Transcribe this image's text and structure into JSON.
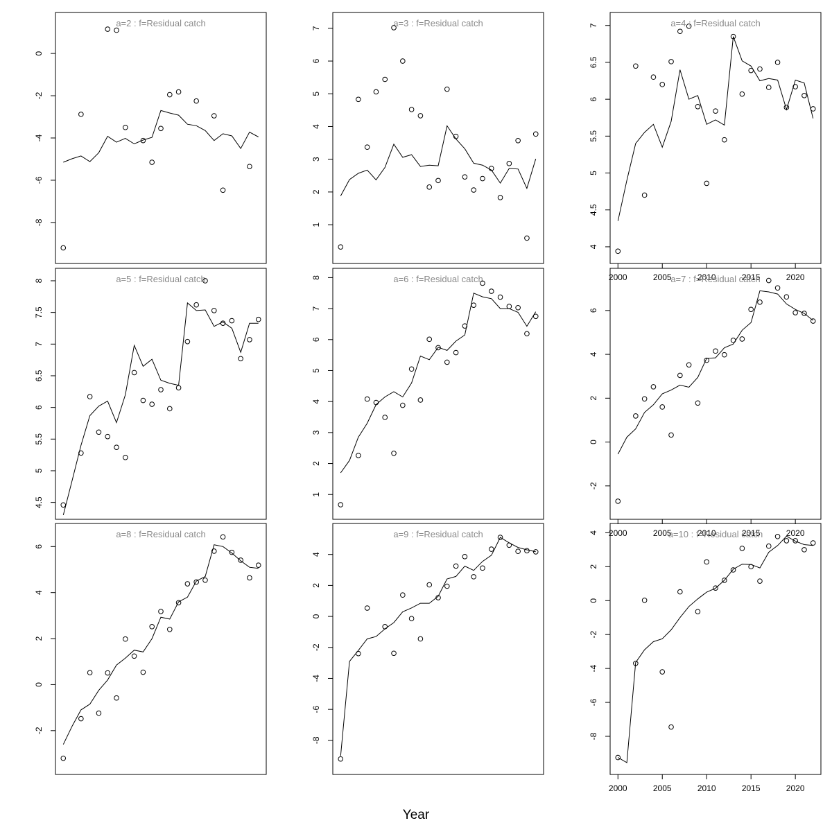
{
  "xlabel": "Year",
  "chart_data": [
    {
      "type": "line",
      "title": "a=2  :  f=Residual catch",
      "xlim": [
        2000,
        2022
      ],
      "ylim": [
        -9.5,
        1.5
      ],
      "yticks": [
        -8,
        -6,
        -4,
        -2,
        0
      ],
      "xticks": [],
      "line": {
        "x": [
          2000,
          2001,
          2002,
          2003,
          2004,
          2005,
          2006,
          2007,
          2008,
          2009,
          2010,
          2011,
          2012,
          2013,
          2014,
          2015,
          2016,
          2017,
          2018,
          2019,
          2020,
          2021,
          2022
        ],
        "y": [
          -5.15,
          -4.98,
          -4.85,
          -5.12,
          -4.7,
          -3.92,
          -4.2,
          -4.02,
          -4.28,
          -4.1,
          -3.97,
          -2.7,
          -2.82,
          -2.92,
          -3.35,
          -3.42,
          -3.65,
          -4.12,
          -3.8,
          -3.9,
          -4.5,
          -3.72,
          -3.95
        ]
      },
      "points": {
        "x": [
          2000,
          2002,
          2005,
          2006,
          2007,
          2009,
          2010,
          2011,
          2012,
          2013,
          2015,
          2017,
          2018,
          2021
        ],
        "y": [
          -9.2,
          -2.88,
          1.15,
          1.1,
          -3.5,
          -4.12,
          -5.15,
          -3.55,
          -1.95,
          -1.82,
          -2.25,
          -2.95,
          -6.47,
          -5.35
        ]
      }
    },
    {
      "type": "line",
      "title": "a=3  :  f=Residual catch",
      "xlim": [
        2000,
        2022
      ],
      "ylim": [
        0.1,
        7.2
      ],
      "yticks": [
        1,
        2,
        3,
        4,
        5,
        6,
        7
      ],
      "xticks": [],
      "line": {
        "x": [
          2000,
          2001,
          2002,
          2003,
          2004,
          2005,
          2006,
          2007,
          2008,
          2009,
          2010,
          2011,
          2012,
          2013,
          2014,
          2015,
          2016,
          2017,
          2018,
          2019,
          2020,
          2021,
          2022
        ],
        "y": [
          1.88,
          2.38,
          2.57,
          2.67,
          2.37,
          2.75,
          3.46,
          3.06,
          3.14,
          2.78,
          2.82,
          2.8,
          4.02,
          3.62,
          3.32,
          2.88,
          2.82,
          2.67,
          2.27,
          2.72,
          2.7,
          2.11,
          3.01
        ]
      },
      "points": {
        "x": [
          2000,
          2002,
          2003,
          2004,
          2005,
          2006,
          2007,
          2008,
          2009,
          2010,
          2011,
          2012,
          2013,
          2014,
          2015,
          2016,
          2017,
          2018,
          2019,
          2020,
          2021,
          2022
        ],
        "y": [
          0.32,
          4.83,
          3.37,
          5.06,
          5.44,
          7.02,
          6.0,
          4.52,
          4.33,
          2.15,
          2.35,
          5.14,
          3.7,
          2.46,
          2.06,
          2.41,
          2.72,
          1.83,
          2.87,
          3.57,
          0.59,
          3.77
        ]
      }
    },
    {
      "type": "line",
      "title": "a=4  :  f=Residual catch",
      "xlim": [
        2000,
        2022
      ],
      "ylim": [
        3.9,
        7.05
      ],
      "yticks": [
        4.0,
        4.5,
        5.0,
        5.5,
        6.0,
        6.5,
        7.0
      ],
      "xticks": [
        2000,
        2005,
        2010,
        2015,
        2020
      ],
      "line": {
        "x": [
          2000,
          2001,
          2002,
          2003,
          2004,
          2005,
          2006,
          2007,
          2008,
          2009,
          2010,
          2011,
          2012,
          2013,
          2014,
          2015,
          2016,
          2017,
          2018,
          2019,
          2020,
          2021,
          2022
        ],
        "y": [
          4.35,
          4.9,
          5.4,
          5.55,
          5.66,
          5.35,
          5.7,
          6.4,
          6.0,
          6.05,
          5.66,
          5.72,
          5.65,
          6.85,
          6.52,
          6.45,
          6.25,
          6.28,
          6.26,
          5.86,
          6.26,
          6.22,
          5.74
        ]
      },
      "points": {
        "x": [
          2000,
          2002,
          2003,
          2004,
          2005,
          2006,
          2007,
          2008,
          2009,
          2010,
          2011,
          2012,
          2013,
          2014,
          2015,
          2016,
          2017,
          2018,
          2019,
          2020,
          2021,
          2022
        ],
        "y": [
          3.94,
          6.45,
          4.7,
          6.3,
          6.2,
          6.51,
          6.92,
          6.99,
          5.9,
          4.86,
          5.84,
          5.45,
          6.85,
          6.07,
          6.39,
          6.41,
          6.16,
          6.5,
          5.89,
          6.17,
          6.05,
          5.87
        ]
      }
    },
    {
      "type": "line",
      "title": "a=5  :  f=Residual catch",
      "xlim": [
        2000,
        2022
      ],
      "ylim": [
        4.38,
        8.05
      ],
      "yticks": [
        4.5,
        5.0,
        5.5,
        6.0,
        6.5,
        7.0,
        7.5,
        8.0
      ],
      "xticks": [],
      "line": {
        "x": [
          2000,
          2001,
          2002,
          2003,
          2004,
          2005,
          2006,
          2007,
          2008,
          2009,
          2010,
          2011,
          2012,
          2013,
          2014,
          2015,
          2016,
          2017,
          2018,
          2019,
          2020,
          2021,
          2022
        ],
        "y": [
          4.3,
          4.85,
          5.4,
          5.87,
          6.02,
          6.1,
          5.76,
          6.2,
          6.98,
          6.65,
          6.76,
          6.43,
          6.38,
          6.35,
          7.65,
          7.53,
          7.54,
          7.28,
          7.35,
          7.25,
          6.87,
          7.33,
          7.33
        ]
      },
      "points": {
        "x": [
          2000,
          2002,
          2003,
          2004,
          2005,
          2006,
          2007,
          2008,
          2009,
          2010,
          2011,
          2012,
          2013,
          2014,
          2015,
          2016,
          2017,
          2018,
          2019,
          2020,
          2021,
          2022
        ],
        "y": [
          4.46,
          5.28,
          6.17,
          5.61,
          5.54,
          5.37,
          5.21,
          6.55,
          6.11,
          6.05,
          6.28,
          5.98,
          6.31,
          7.04,
          7.62,
          8.0,
          7.53,
          7.33,
          7.37,
          6.77,
          7.07,
          7.39
        ]
      }
    },
    {
      "type": "line",
      "title": "a=6  :  f=Residual catch",
      "xlim": [
        2000,
        2022
      ],
      "ylim": [
        0.5,
        8.0
      ],
      "yticks": [
        1,
        2,
        3,
        4,
        5,
        6,
        7,
        8
      ],
      "xticks": [],
      "line": {
        "x": [
          2000,
          2001,
          2002,
          2003,
          2004,
          2005,
          2006,
          2007,
          2008,
          2009,
          2010,
          2011,
          2012,
          2013,
          2014,
          2015,
          2016,
          2017,
          2018,
          2019,
          2020,
          2021,
          2022
        ],
        "y": [
          1.7,
          2.1,
          2.85,
          3.3,
          3.9,
          4.15,
          4.32,
          4.15,
          4.6,
          5.47,
          5.35,
          5.75,
          5.65,
          5.95,
          6.15,
          7.5,
          7.38,
          7.32,
          7.0,
          7.0,
          6.88,
          6.43,
          6.9
        ]
      },
      "points": {
        "x": [
          2000,
          2002,
          2003,
          2004,
          2005,
          2006,
          2007,
          2008,
          2009,
          2010,
          2011,
          2012,
          2013,
          2014,
          2015,
          2016,
          2017,
          2018,
          2019,
          2020,
          2021,
          2022
        ],
        "y": [
          0.67,
          2.26,
          4.08,
          3.97,
          3.49,
          2.33,
          3.88,
          5.05,
          4.05,
          6.01,
          5.74,
          5.27,
          5.58,
          6.44,
          7.11,
          7.82,
          7.56,
          7.37,
          7.07,
          7.03,
          6.19,
          6.75
        ]
      }
    },
    {
      "type": "line",
      "title": "a=7  :  f=Residual catch",
      "xlim": [
        2000,
        2022
      ],
      "ylim": [
        -3.1,
        7.5
      ],
      "yticks": [
        -2,
        0,
        2,
        4,
        6
      ],
      "xticks": [
        2000,
        2005,
        2010,
        2015,
        2020
      ],
      "line": {
        "x": [
          2000,
          2001,
          2002,
          2003,
          2004,
          2005,
          2006,
          2007,
          2008,
          2009,
          2010,
          2011,
          2012,
          2013,
          2014,
          2015,
          2016,
          2017,
          2018,
          2019,
          2020,
          2021,
          2022
        ],
        "y": [
          -0.55,
          0.22,
          0.6,
          1.35,
          1.7,
          2.2,
          2.37,
          2.6,
          2.5,
          2.95,
          3.82,
          3.84,
          4.3,
          4.47,
          5.1,
          5.45,
          6.9,
          6.85,
          6.75,
          6.3,
          6.05,
          5.87,
          5.55
        ]
      },
      "points": {
        "x": [
          2000,
          2002,
          2003,
          2004,
          2005,
          2006,
          2007,
          2008,
          2009,
          2010,
          2011,
          2012,
          2013,
          2014,
          2015,
          2016,
          2017,
          2018,
          2019,
          2020,
          2021,
          2022
        ],
        "y": [
          -2.7,
          1.19,
          1.97,
          2.52,
          1.6,
          0.32,
          3.04,
          3.52,
          1.78,
          3.73,
          4.15,
          3.98,
          4.64,
          4.7,
          6.05,
          6.38,
          7.37,
          7.03,
          6.62,
          5.9,
          5.87,
          5.52
        ]
      }
    },
    {
      "type": "line",
      "title": "a=8  :  f=Residual catch",
      "xlim": [
        2000,
        2022
      ],
      "ylim": [
        -3.5,
        6.6
      ],
      "yticks": [
        -2,
        0,
        2,
        4,
        6
      ],
      "xticks": [],
      "line": {
        "x": [
          2000,
          2001,
          2002,
          2003,
          2004,
          2005,
          2006,
          2007,
          2008,
          2009,
          2010,
          2011,
          2012,
          2013,
          2014,
          2015,
          2016,
          2017,
          2018,
          2019,
          2020,
          2021,
          2022
        ],
        "y": [
          -2.6,
          -1.8,
          -1.1,
          -0.85,
          -0.25,
          0.2,
          0.85,
          1.15,
          1.5,
          1.42,
          2.0,
          2.93,
          2.85,
          3.6,
          3.8,
          4.5,
          4.7,
          6.08,
          6.0,
          5.72,
          5.38,
          5.1,
          5.05
        ]
      },
      "points": {
        "x": [
          2000,
          2002,
          2003,
          2004,
          2005,
          2006,
          2007,
          2008,
          2009,
          2010,
          2011,
          2012,
          2013,
          2014,
          2015,
          2016,
          2017,
          2018,
          2019,
          2020,
          2021,
          2022
        ],
        "y": [
          -3.2,
          -1.48,
          0.52,
          -1.24,
          0.51,
          -0.58,
          1.98,
          1.24,
          0.54,
          2.52,
          3.18,
          2.4,
          3.56,
          4.38,
          4.46,
          4.54,
          5.8,
          6.42,
          5.75,
          5.41,
          4.64,
          5.19
        ]
      }
    },
    {
      "type": "line",
      "title": "a=9  :  f=Residual catch",
      "xlim": [
        2000,
        2022
      ],
      "ylim": [
        -9.6,
        5.4
      ],
      "yticks": [
        -8,
        -6,
        -4,
        -2,
        0,
        2,
        4
      ],
      "xticks": [],
      "line": {
        "x": [
          2000,
          2001,
          2002,
          2003,
          2004,
          2005,
          2006,
          2007,
          2008,
          2009,
          2010,
          2011,
          2012,
          2013,
          2014,
          2015,
          2016,
          2017,
          2018,
          2019,
          2020,
          2021,
          2022
        ],
        "y": [
          -9.0,
          -2.9,
          -2.2,
          -1.45,
          -1.3,
          -0.8,
          -0.4,
          0.3,
          0.55,
          0.85,
          0.85,
          1.3,
          2.42,
          2.58,
          3.25,
          2.97,
          3.55,
          3.95,
          5.1,
          4.75,
          4.45,
          4.3,
          4.18
        ]
      },
      "points": {
        "x": [
          2000,
          2002,
          2003,
          2005,
          2006,
          2007,
          2008,
          2009,
          2010,
          2011,
          2012,
          2013,
          2014,
          2015,
          2016,
          2017,
          2018,
          2019,
          2020,
          2021,
          2022
        ],
        "y": [
          -9.2,
          -2.4,
          0.54,
          -0.66,
          -2.38,
          1.38,
          -0.14,
          -1.45,
          2.04,
          1.21,
          1.95,
          3.25,
          3.86,
          2.56,
          3.12,
          4.34,
          5.1,
          4.6,
          4.2,
          4.24,
          4.17
        ]
      }
    },
    {
      "type": "line",
      "title": "a=10  :  f=Residual catch",
      "xlim": [
        2000,
        2022
      ],
      "ylim": [
        -9.7,
        4.0
      ],
      "yticks": [
        -8,
        -6,
        -4,
        -2,
        0,
        2,
        4
      ],
      "xticks": [
        2000,
        2005,
        2010,
        2015,
        2020
      ],
      "line": {
        "x": [
          2000,
          2001,
          2002,
          2003,
          2004,
          2005,
          2006,
          2007,
          2008,
          2009,
          2010,
          2011,
          2012,
          2013,
          2014,
          2015,
          2016,
          2017,
          2018,
          2019,
          2020,
          2021,
          2022
        ],
        "y": [
          -9.25,
          -9.55,
          -3.65,
          -2.9,
          -2.42,
          -2.25,
          -1.72,
          -1.0,
          -0.35,
          0.1,
          0.5,
          0.73,
          1.2,
          1.85,
          2.15,
          2.13,
          1.93,
          2.85,
          3.25,
          3.8,
          3.5,
          3.3,
          3.25
        ]
      },
      "points": {
        "x": [
          2000,
          2002,
          2003,
          2005,
          2006,
          2007,
          2009,
          2010,
          2011,
          2012,
          2013,
          2014,
          2015,
          2016,
          2017,
          2018,
          2019,
          2020,
          2021,
          2022
        ],
        "y": [
          -9.25,
          -3.7,
          0.02,
          -4.2,
          -7.45,
          0.52,
          -0.65,
          2.28,
          0.74,
          1.2,
          1.81,
          3.08,
          2.0,
          1.15,
          3.21,
          3.78,
          3.53,
          3.53,
          3.0,
          3.4
        ]
      }
    }
  ]
}
